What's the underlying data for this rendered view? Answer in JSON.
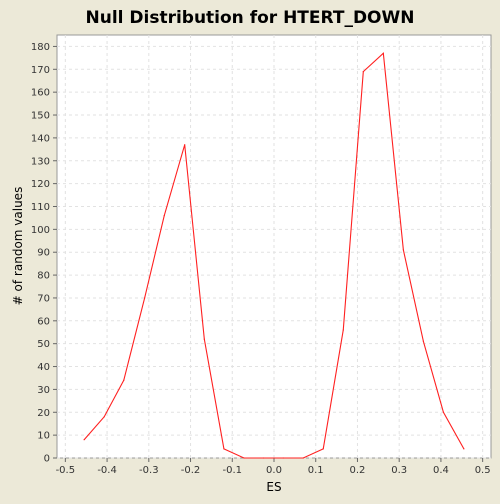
{
  "chart_data": {
    "type": "line",
    "title": "Null Distribution for HTERT_DOWN",
    "xlabel": "ES",
    "ylabel": "# of random values",
    "xlim": [
      -0.52,
      0.52
    ],
    "ylim": [
      0,
      185
    ],
    "x_ticks": [
      "-0.5",
      "-0.4",
      "-0.3",
      "-0.2",
      "-0.1",
      "0.0",
      "0.1",
      "0.2",
      "0.3",
      "0.4",
      "0.5"
    ],
    "y_ticks": [
      "0",
      "10",
      "20",
      "30",
      "40",
      "50",
      "60",
      "70",
      "80",
      "90",
      "100",
      "110",
      "120",
      "130",
      "140",
      "150",
      "160",
      "170",
      "180"
    ],
    "grid": true,
    "series": [
      {
        "color": "#ff2020",
        "points": [
          [
            -0.455,
            8
          ],
          [
            -0.407,
            18
          ],
          [
            -0.36,
            34
          ],
          [
            -0.31,
            70
          ],
          [
            -0.263,
            106
          ],
          [
            -0.214,
            137
          ],
          [
            -0.167,
            52
          ],
          [
            -0.12,
            4
          ],
          [
            -0.072,
            0
          ],
          [
            -0.025,
            0
          ],
          [
            0.022,
            0
          ],
          [
            0.07,
            0
          ],
          [
            0.118,
            4
          ],
          [
            0.166,
            56
          ],
          [
            0.214,
            169
          ],
          [
            0.262,
            177
          ],
          [
            0.31,
            91
          ],
          [
            0.358,
            51
          ],
          [
            0.406,
            20
          ],
          [
            0.455,
            4
          ]
        ]
      }
    ]
  }
}
